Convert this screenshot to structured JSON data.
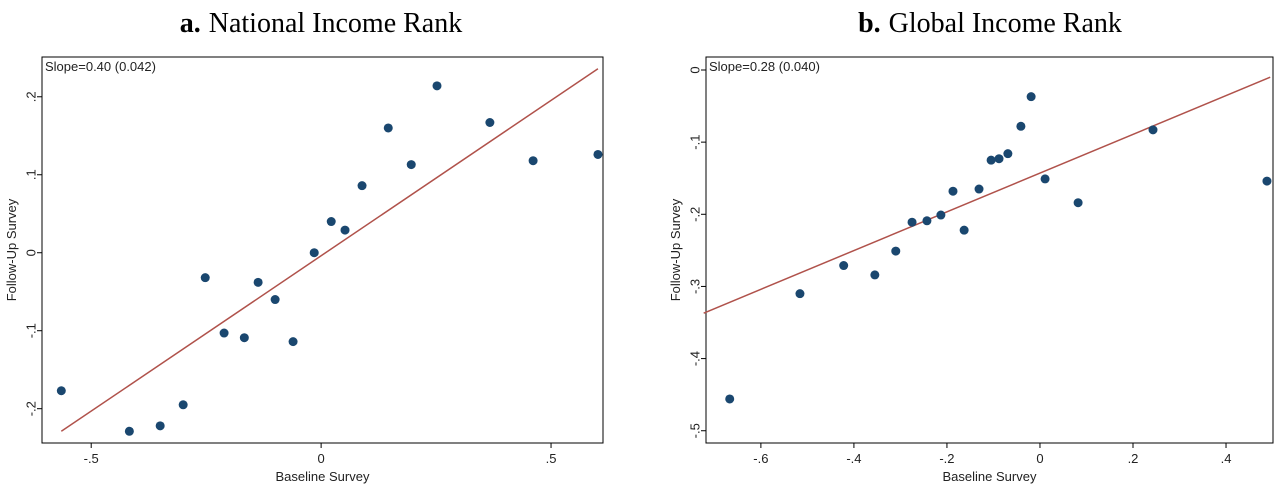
{
  "chart_data": [
    {
      "type": "scatter",
      "panel": "a.",
      "title": "National Income Rank",
      "annotation": "Slope=0.40 (0.042)",
      "x_label": "Baseline Survey",
      "y_label": "Follow-Up Survey",
      "color": "#1a476f",
      "fit_color": "#b0524b",
      "x": [
        -0.565,
        -0.417,
        -0.35,
        -0.3,
        -0.252,
        -0.211,
        -0.167,
        -0.137,
        -0.1,
        -0.061,
        -0.015,
        0.022,
        0.052,
        0.089,
        0.146,
        0.196,
        0.252,
        0.367,
        0.461,
        0.602
      ],
      "values": [
        -0.177,
        -0.229,
        -0.222,
        -0.195,
        -0.032,
        -0.103,
        -0.109,
        -0.038,
        -0.06,
        -0.114,
        0.0,
        0.04,
        0.029,
        0.086,
        0.16,
        0.113,
        0.214,
        0.167,
        0.118,
        0.126
      ],
      "fit": {
        "x": [
          -0.565,
          0.602
        ],
        "y": [
          -0.229,
          0.236
        ]
      },
      "xlim": [
        -0.607,
        0.613
      ],
      "ylim": [
        -0.244,
        0.251
      ],
      "xticks": [
        {
          "value": -0.5,
          "label": "-.5"
        },
        0,
        {
          "value": 0.5,
          "label": ".5"
        }
      ],
      "yticks": [
        {
          "value": -0.2,
          "label": "-.2"
        },
        {
          "value": -0.1,
          "label": "-.1"
        },
        0,
        {
          "value": 0.1,
          "label": ".1"
        },
        {
          "value": 0.2,
          "label": ".2"
        }
      ]
    },
    {
      "type": "scatter",
      "panel": "b.",
      "title": "Global Income Rank",
      "annotation": "Slope=0.28 (0.040)",
      "x_label": "Baseline Survey",
      "y_label": "Follow-Up Survey",
      "color": "#1a476f",
      "fit_color": "#b0524b",
      "x": [
        -0.667,
        -0.516,
        -0.422,
        -0.355,
        -0.31,
        -0.275,
        -0.243,
        -0.213,
        -0.187,
        -0.163,
        -0.131,
        -0.105,
        -0.088,
        -0.069,
        -0.041,
        -0.019,
        0.011,
        0.082,
        0.243,
        0.488
      ],
      "values": [
        -0.456,
        -0.31,
        -0.271,
        -0.284,
        -0.251,
        -0.211,
        -0.209,
        -0.201,
        -0.168,
        -0.222,
        -0.165,
        -0.125,
        -0.123,
        -0.116,
        -0.078,
        -0.037,
        -0.151,
        -0.184,
        -0.083,
        -0.154
      ],
      "fit": {
        "x": [
          -0.723,
          0.495
        ],
        "y": [
          -0.337,
          -0.01
        ]
      },
      "xlim": [
        -0.718,
        0.501
      ],
      "ylim": [
        -0.517,
        0.018
      ],
      "xticks": [
        {
          "value": -0.6,
          "label": "-.6"
        },
        {
          "value": -0.4,
          "label": "-.4"
        },
        {
          "value": -0.2,
          "label": "-.2"
        },
        0,
        {
          "value": 0.2,
          "label": ".2"
        },
        {
          "value": 0.4,
          "label": ".4"
        }
      ],
      "yticks": [
        {
          "value": -0.5,
          "label": "-.5"
        },
        {
          "value": -0.4,
          "label": "-.4"
        },
        {
          "value": -0.3,
          "label": "-.3"
        },
        {
          "value": -0.2,
          "label": "-.2"
        },
        {
          "value": -0.1,
          "label": "-.1"
        },
        0
      ]
    }
  ]
}
